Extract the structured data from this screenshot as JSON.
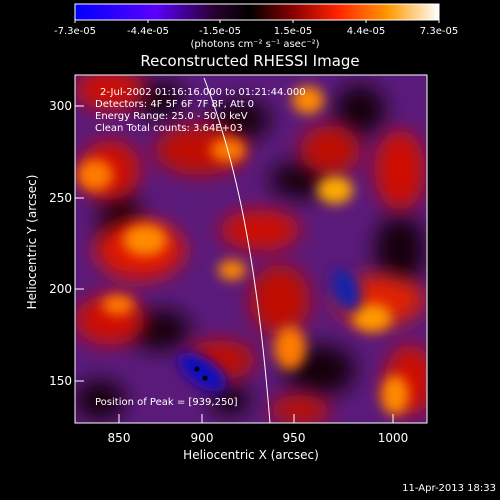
{
  "title": "Reconstructed RHESSI Image",
  "colorbar": {
    "tick_labels": [
      "-7.3e-05",
      "-4.4e-05",
      "-1.5e-05",
      "1.5e-05",
      "4.4e-05",
      "7.3e-05"
    ],
    "units": "(photons cm⁻² s⁻¹ asec⁻²)",
    "colors": [
      "#0000ff",
      "#7a00ff",
      "#2a0030",
      "#000000",
      "#7a0000",
      "#ff2200",
      "#ff9900",
      "#ffffff"
    ]
  },
  "annotations": {
    "time_range": "2-Jul-2002 01:16:16.000 to 01:21:44.000",
    "detectors": "Detectors: 4F 5F 6F 7F 8F, Att 0",
    "energy": "Energy Range: 25.0 - 50.0 keV",
    "clean": "Clean    Total counts: 3.64E+03",
    "peak": "Position of Peak = [939,250]"
  },
  "axes": {
    "xlabel": "Heliocentric X (arcsec)",
    "ylabel": "Heliocentric Y (arcsec)",
    "x_ticks": [
      "850",
      "900",
      "950",
      "1000"
    ],
    "y_ticks": [
      "150",
      "200",
      "250",
      "300"
    ]
  },
  "timestamp": "11-Apr-2013 18:33"
}
